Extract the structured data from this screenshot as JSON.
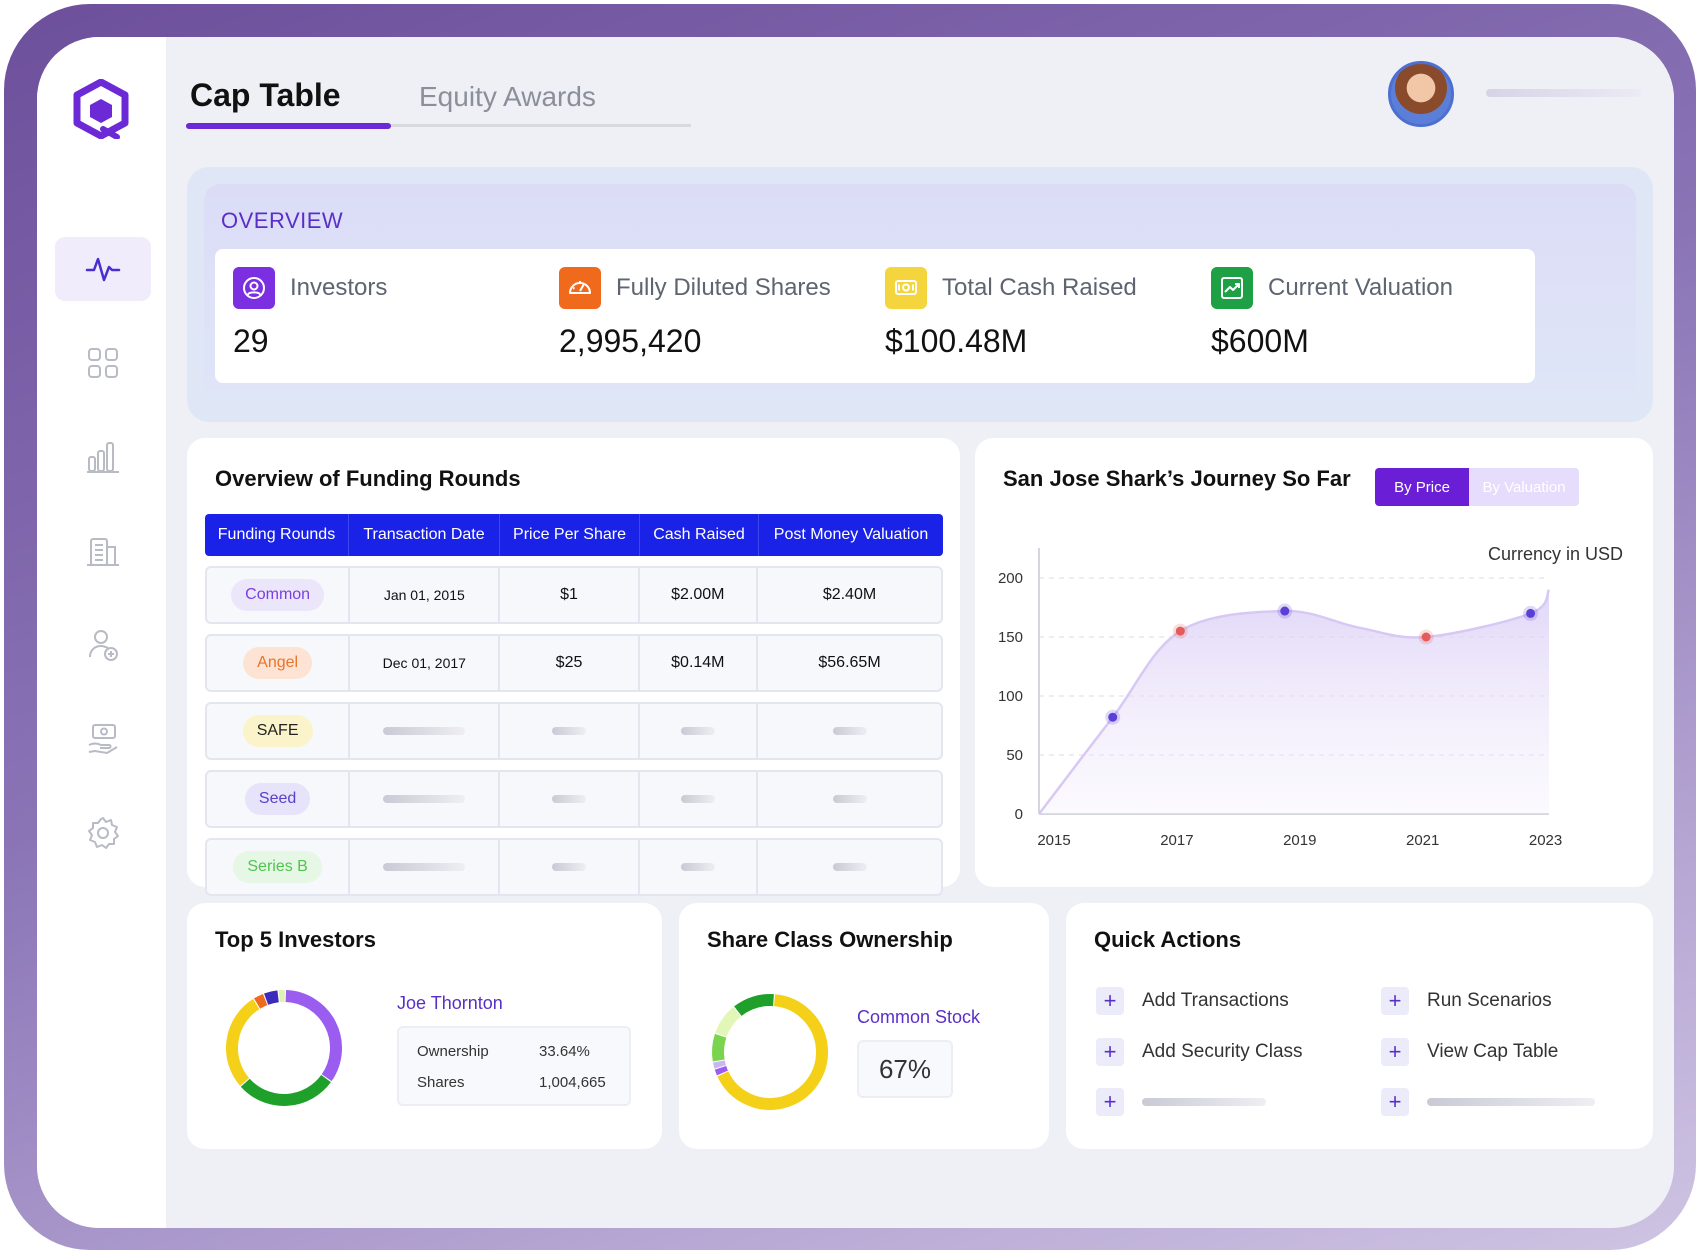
{
  "tabs": [
    {
      "label": "Cap Table",
      "active": true
    },
    {
      "label": "Equity Awards",
      "active": false
    }
  ],
  "sidebar": {
    "items": [
      {
        "icon": "activity-icon",
        "active": true
      },
      {
        "icon": "grid-icon"
      },
      {
        "icon": "bar-chart-icon"
      },
      {
        "icon": "building-icon"
      },
      {
        "icon": "user-add-icon"
      },
      {
        "icon": "hand-money-icon"
      },
      {
        "icon": "gear-icon"
      }
    ]
  },
  "overview": {
    "title": "OVERVIEW",
    "stats": [
      {
        "label": "Investors",
        "value": "29",
        "icon": "user-circle-icon",
        "color": "#7c2fe0"
      },
      {
        "label": "Fully Diluted Shares",
        "value": "2,995,420",
        "icon": "speedometer-icon",
        "color": "#f06a1d"
      },
      {
        "label": "Total Cash Raised",
        "value": "$100.48M",
        "icon": "cash-icon",
        "color": "#f5d53d"
      },
      {
        "label": "Current Valuation",
        "value": "$600M",
        "icon": "trend-up-icon",
        "color": "#1ea045"
      }
    ]
  },
  "funding": {
    "title": "Overview of Funding Rounds",
    "columns": [
      "Funding Rounds",
      "Transaction Date",
      "Price Per Share",
      "Cash Raised",
      "Post Money Valuation"
    ],
    "rows": [
      {
        "round": "Common",
        "date": "Jan 01, 2015",
        "price": "$1",
        "cash": "$2.00M",
        "valuation": "$2.40M",
        "pill_bg": "#ece6fb",
        "pill_fg": "#7a3fe0"
      },
      {
        "round": "Angel",
        "date": "Dec 01, 2017",
        "price": "$25",
        "cash": "$0.14M",
        "valuation": "$56.65M",
        "pill_bg": "#fde3d3",
        "pill_fg": "#e9742b"
      },
      {
        "round": "SAFE",
        "date": "",
        "price": "",
        "cash": "",
        "valuation": "",
        "pill_bg": "#fbf3c9",
        "pill_fg": "#222222"
      },
      {
        "round": "Seed",
        "date": "",
        "price": "",
        "cash": "",
        "valuation": "",
        "pill_bg": "#e6e3fa",
        "pill_fg": "#5a3fc8"
      },
      {
        "round": "Series B",
        "date": "",
        "price": "",
        "cash": "",
        "valuation": "",
        "pill_bg": "#e6f7e6",
        "pill_fg": "#4fc44f"
      }
    ]
  },
  "journey": {
    "title": "San Jose Shark’s Journey So Far",
    "toggle": [
      "By Price",
      "By Valuation"
    ],
    "note": "Currency in USD"
  },
  "chart_data": {
    "type": "area",
    "x": [
      2015,
      2016.2,
      2017.3,
      2019,
      2020.2,
      2021.3,
      2023,
      2023.3
    ],
    "values": [
      0,
      82,
      155,
      172,
      158,
      150,
      170,
      190
    ],
    "markers": [
      {
        "x": 2016.2,
        "y": 82,
        "color": "#5b3fd6"
      },
      {
        "x": 2017.3,
        "y": 155,
        "color": "#e55b5b"
      },
      {
        "x": 2019,
        "y": 172,
        "color": "#5b3fd6"
      },
      {
        "x": 2021.3,
        "y": 150,
        "color": "#e55b5b"
      },
      {
        "x": 2023,
        "y": 170,
        "color": "#5b3fd6"
      }
    ],
    "xticks": [
      "2015",
      "2017",
      "2019",
      "2021",
      "2023"
    ],
    "yticks": [
      "200",
      "150",
      "100",
      "50",
      "0"
    ],
    "ylim": [
      0,
      200
    ],
    "grid": true
  },
  "top_investors": {
    "title": "Top 5 Investors",
    "selected": "Joe Thornton",
    "ownership_label": "Ownership",
    "ownership_value": "33.64%",
    "shares_label": "Shares",
    "shares_value": "1,004,665",
    "segments": [
      {
        "value": 33.64,
        "color": "#9b5cf0"
      },
      {
        "value": 28,
        "color": "#1ea02a"
      },
      {
        "value": 27,
        "color": "#f5d018"
      },
      {
        "value": 3,
        "color": "#f06a1d"
      },
      {
        "value": 4,
        "color": "#3b2bbd"
      },
      {
        "value": 2,
        "color": "#dff3b0"
      }
    ]
  },
  "share_class": {
    "title": "Share Class Ownership",
    "selected": "Common Stock",
    "percent": "67%",
    "segments": [
      {
        "value": 67,
        "color": "#f5d018"
      },
      {
        "value": 2,
        "color": "#9b5cf0"
      },
      {
        "value": 2,
        "color": "#c9b6f5"
      },
      {
        "value": 8,
        "color": "#7ad44f"
      },
      {
        "value": 9,
        "color": "#e2f6b8"
      },
      {
        "value": 12,
        "color": "#1ea02a"
      }
    ]
  },
  "quick_actions": {
    "title": "Quick Actions",
    "items": [
      "Add Transactions",
      "Run Scenarios",
      "Add Security Class",
      "View Cap Table"
    ]
  }
}
